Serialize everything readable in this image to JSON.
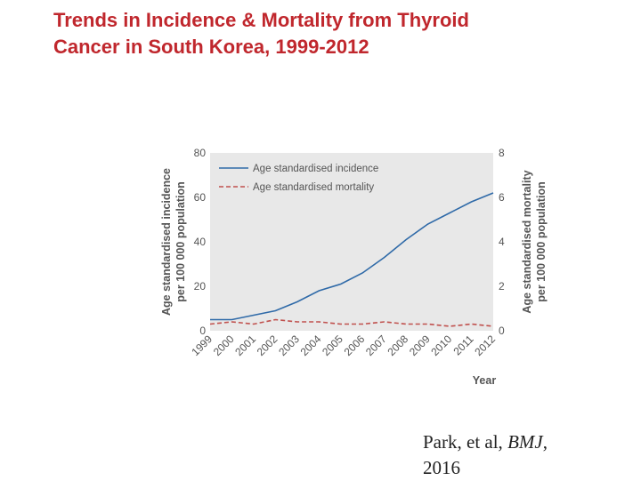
{
  "slide": {
    "title_line1": "Trends in Incidence & Mortality from Thyroid",
    "title_line2": "Cancer in South Korea, 1999-2012",
    "citation_prefix": "Park, et al, ",
    "citation_journal": "BMJ",
    "citation_suffix": ",",
    "citation_year": "2016"
  },
  "colors": {
    "title": "#c0272d",
    "incidence": "#2f6aa8",
    "mortality": "#c0504d",
    "plot_background": "#e8e8e8"
  },
  "chart_data": {
    "type": "line",
    "title": "",
    "xlabel": "Year",
    "ylabel": "Age standardised incidence",
    "ylabel_sub": "per 100 000 population",
    "y2label": "Age standardised mortality",
    "y2label_sub": "per 100 000 population",
    "ylim": [
      0,
      80
    ],
    "y2lim": [
      0,
      8
    ],
    "yticks": [
      "0",
      "20",
      "40",
      "60",
      "80"
    ],
    "y2ticks": [
      "0",
      "2",
      "4",
      "6",
      "8"
    ],
    "categories": [
      "1999",
      "2000",
      "2001",
      "2002",
      "2003",
      "2004",
      "2005",
      "2006",
      "2007",
      "2008",
      "2009",
      "2010",
      "2011",
      "2012"
    ],
    "series": [
      {
        "name": "Age standardised incidence",
        "axis": "left",
        "style": "solid",
        "values": [
          5,
          5,
          7,
          9,
          13,
          18,
          21,
          26,
          33,
          41,
          48,
          53,
          58,
          62
        ]
      },
      {
        "name": "Age standardised mortality",
        "axis": "right",
        "style": "dashed",
        "values": [
          0.3,
          0.4,
          0.3,
          0.5,
          0.4,
          0.4,
          0.3,
          0.3,
          0.4,
          0.3,
          0.3,
          0.2,
          0.3,
          0.2
        ]
      }
    ],
    "legend_position": "top-left",
    "grid": false
  }
}
